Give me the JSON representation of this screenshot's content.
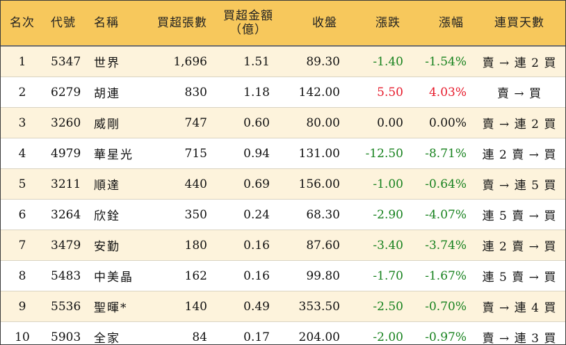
{
  "header": {
    "rank": "名次",
    "code": "代號",
    "name": "名稱",
    "net_buy_lots": "買超張數",
    "net_buy_amount_line1": "買超金額",
    "net_buy_amount_line2": "（億）",
    "close": "收盤",
    "change": "漲跌",
    "change_pct": "漲幅",
    "streak_days": "連買天數"
  },
  "colors": {
    "header_bg": "#f7c85c",
    "row_alt_bg": "#fdf3dc",
    "up": "#e6192a",
    "down": "#17821e",
    "flat": "#111111"
  },
  "rows": [
    {
      "rank": "1",
      "code": "5347",
      "name": "世界",
      "lots": "1,696",
      "amount": "1.51",
      "close": "89.30",
      "change": "-1.40",
      "change_pct": "-1.54%",
      "direction": "down",
      "streak": "賣 → 連 2 買"
    },
    {
      "rank": "2",
      "code": "6279",
      "name": "胡連",
      "lots": "830",
      "amount": "1.18",
      "close": "142.00",
      "change": "5.50",
      "change_pct": "4.03%",
      "direction": "up",
      "streak": "賣 → 買"
    },
    {
      "rank": "3",
      "code": "3260",
      "name": "威剛",
      "lots": "747",
      "amount": "0.60",
      "close": "80.00",
      "change": "0.00",
      "change_pct": "0.00%",
      "direction": "flat",
      "streak": "賣 → 連 2 買"
    },
    {
      "rank": "4",
      "code": "4979",
      "name": "華星光",
      "lots": "715",
      "amount": "0.94",
      "close": "131.00",
      "change": "-12.50",
      "change_pct": "-8.71%",
      "direction": "down",
      "streak": "連 2 賣 → 買"
    },
    {
      "rank": "5",
      "code": "3211",
      "name": "順達",
      "lots": "440",
      "amount": "0.69",
      "close": "156.00",
      "change": "-1.00",
      "change_pct": "-0.64%",
      "direction": "down",
      "streak": "賣 → 連 5 買"
    },
    {
      "rank": "6",
      "code": "3264",
      "name": "欣銓",
      "lots": "350",
      "amount": "0.24",
      "close": "68.30",
      "change": "-2.90",
      "change_pct": "-4.07%",
      "direction": "down",
      "streak": "連 5 賣 → 買"
    },
    {
      "rank": "7",
      "code": "3479",
      "name": "安勤",
      "lots": "180",
      "amount": "0.16",
      "close": "87.60",
      "change": "-3.40",
      "change_pct": "-3.74%",
      "direction": "down",
      "streak": "連 2 賣 → 買"
    },
    {
      "rank": "8",
      "code": "5483",
      "name": "中美晶",
      "lots": "162",
      "amount": "0.16",
      "close": "99.80",
      "change": "-1.70",
      "change_pct": "-1.67%",
      "direction": "down",
      "streak": "連 5 賣 → 買"
    },
    {
      "rank": "9",
      "code": "5536",
      "name": "聖暉*",
      "lots": "140",
      "amount": "0.49",
      "close": "353.50",
      "change": "-2.50",
      "change_pct": "-0.70%",
      "direction": "down",
      "streak": "賣 → 連 4 買"
    },
    {
      "rank": "10",
      "code": "5903",
      "name": "全家",
      "lots": "84",
      "amount": "0.17",
      "close": "204.00",
      "change": "-2.00",
      "change_pct": "-0.97%",
      "direction": "down",
      "streak": "賣 → 連 3 買"
    }
  ]
}
